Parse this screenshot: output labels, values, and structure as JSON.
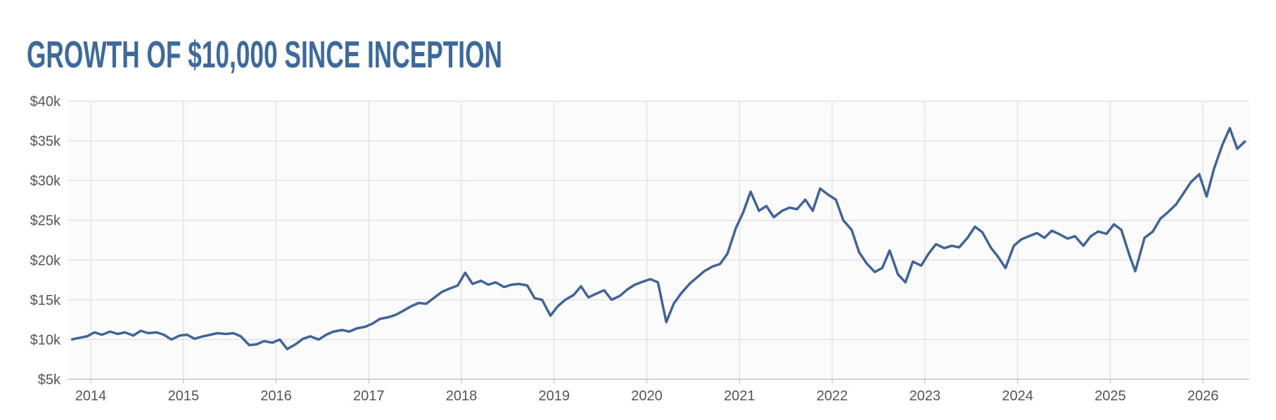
{
  "chart_data": {
    "type": "line",
    "title": "GROWTH OF $10,000 SINCE INCEPTION",
    "grid": true,
    "xlim": [
      2013.75,
      2026.5
    ],
    "xticks": [
      2014,
      2015,
      2016,
      2017,
      2018,
      2019,
      2020,
      2021,
      2022,
      2023,
      2024,
      2025,
      2026
    ],
    "ylim": [
      5000,
      40000
    ],
    "yticks": [
      {
        "value": 5000,
        "label": "$5k"
      },
      {
        "value": 10000,
        "label": "$10k"
      },
      {
        "value": 15000,
        "label": "$15k"
      },
      {
        "value": 20000,
        "label": "$20k"
      },
      {
        "value": 25000,
        "label": "$25k"
      },
      {
        "value": 30000,
        "label": "$30k"
      },
      {
        "value": 35000,
        "label": "$35k"
      },
      {
        "value": 40000,
        "label": "$40k"
      }
    ],
    "x": [
      2013.79,
      2013.87,
      2013.96,
      2014.04,
      2014.12,
      2014.21,
      2014.29,
      2014.37,
      2014.46,
      2014.54,
      2014.62,
      2014.71,
      2014.79,
      2014.87,
      2014.96,
      2015.04,
      2015.12,
      2015.21,
      2015.29,
      2015.37,
      2015.46,
      2015.54,
      2015.62,
      2015.71,
      2015.79,
      2015.87,
      2015.96,
      2016.04,
      2016.12,
      2016.21,
      2016.29,
      2016.37,
      2016.46,
      2016.54,
      2016.62,
      2016.71,
      2016.79,
      2016.87,
      2016.96,
      2017.04,
      2017.12,
      2017.21,
      2017.29,
      2017.37,
      2017.46,
      2017.54,
      2017.62,
      2017.71,
      2017.79,
      2017.87,
      2017.96,
      2018.04,
      2018.12,
      2018.21,
      2018.29,
      2018.37,
      2018.46,
      2018.54,
      2018.62,
      2018.71,
      2018.79,
      2018.87,
      2018.96,
      2019.04,
      2019.12,
      2019.21,
      2019.29,
      2019.37,
      2019.46,
      2019.54,
      2019.62,
      2019.71,
      2019.79,
      2019.87,
      2019.96,
      2020.04,
      2020.12,
      2020.21,
      2020.29,
      2020.37,
      2020.46,
      2020.54,
      2020.62,
      2020.71,
      2020.79,
      2020.87,
      2020.96,
      2021.04,
      2021.12,
      2021.21,
      2021.29,
      2021.37,
      2021.46,
      2021.54,
      2021.62,
      2021.71,
      2021.79,
      2021.87,
      2021.96,
      2022.04,
      2022.12,
      2022.21,
      2022.29,
      2022.37,
      2022.46,
      2022.54,
      2022.62,
      2022.71,
      2022.79,
      2022.87,
      2022.96,
      2023.04,
      2023.12,
      2023.21,
      2023.29,
      2023.37,
      2023.46,
      2023.54,
      2023.62,
      2023.71,
      2023.79,
      2023.87,
      2023.96,
      2024.04,
      2024.12,
      2024.21,
      2024.29,
      2024.37,
      2024.46,
      2024.54,
      2024.62,
      2024.71,
      2024.79,
      2024.87,
      2024.96,
      2025.04,
      2025.12,
      2025.21,
      2025.27,
      2025.37,
      2025.46,
      2025.54,
      2025.62,
      2025.71,
      2025.79,
      2025.87,
      2025.96,
      2026.04,
      2026.12,
      2026.21,
      2026.29,
      2026.37,
      2026.46
    ],
    "series": [
      {
        "color": "#3e6499",
        "values": [
          10000,
          10200,
          10400,
          10900,
          10600,
          11000,
          10700,
          10900,
          10500,
          11100,
          10800,
          10900,
          10600,
          10000,
          10500,
          10600,
          10100,
          10400,
          10600,
          10800,
          10700,
          10800,
          10400,
          9300,
          9400,
          9800,
          9600,
          10000,
          8800,
          9400,
          10100,
          10400,
          10000,
          10600,
          11000,
          11200,
          11000,
          11400,
          11600,
          12000,
          12600,
          12800,
          13100,
          13600,
          14200,
          14600,
          14500,
          15300,
          16000,
          16400,
          16800,
          18400,
          17000,
          17400,
          16900,
          17200,
          16600,
          16900,
          17000,
          16800,
          15200,
          15000,
          13000,
          14200,
          15000,
          15600,
          16700,
          15300,
          15800,
          16200,
          15000,
          15500,
          16300,
          16900,
          17300,
          17600,
          17200,
          12200,
          14500,
          15800,
          17000,
          17800,
          18600,
          19200,
          19500,
          20800,
          24000,
          26000,
          28600,
          26200,
          26800,
          25400,
          26200,
          26600,
          26400,
          27600,
          26200,
          29000,
          28200,
          27600,
          25000,
          23800,
          21000,
          19600,
          18500,
          19000,
          21200,
          18200,
          17200,
          19800,
          19300,
          20800,
          22000,
          21500,
          21800,
          21600,
          22800,
          24200,
          23500,
          21600,
          20400,
          19000,
          21800,
          22600,
          23000,
          23400,
          22800,
          23700,
          23200,
          22700,
          23000,
          21800,
          23000,
          23600,
          23300,
          24500,
          23800,
          20500,
          18600,
          22800,
          23600,
          25200,
          26000,
          27000,
          28400,
          29800,
          30800,
          28000,
          31500,
          34500,
          36600,
          34000,
          35000
        ]
      }
    ]
  }
}
